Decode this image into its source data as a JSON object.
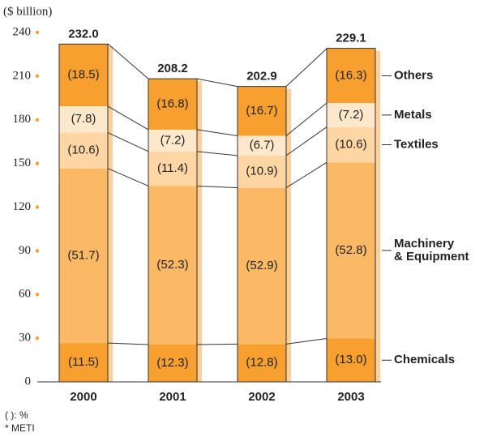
{
  "chart_data": {
    "type": "stacked-bar",
    "y_label": "($ billion)",
    "categories": [
      "2000",
      "2001",
      "2002",
      "2003"
    ],
    "totals": {
      "values": [
        232.0,
        208.2,
        202.9,
        229.1
      ],
      "value_labels": [
        "232.0",
        "208.2",
        "202.9",
        "229.1"
      ]
    },
    "series": [
      {
        "name": "Chemicals",
        "color": "#f7a030",
        "values": [
          11.5,
          12.3,
          12.8,
          13.0
        ],
        "value_labels": [
          "(11.5)",
          "(12.3)",
          "(12.8)",
          "(13.0)"
        ]
      },
      {
        "name": "Machinery & Equipment",
        "color": "#fbb966",
        "values": [
          51.7,
          52.3,
          52.9,
          52.8
        ],
        "value_labels": [
          "(51.7)",
          "(52.3)",
          "(52.9)",
          "(52.8)"
        ]
      },
      {
        "name": "Textiles",
        "color": "#fdd6a4",
        "values": [
          10.6,
          11.4,
          10.9,
          10.6
        ],
        "value_labels": [
          "(10.6)",
          "(11.4)",
          "(10.9)",
          "(10.6)"
        ]
      },
      {
        "name": "Metals",
        "color": "#fee8cb",
        "values": [
          7.8,
          7.2,
          6.7,
          7.2
        ],
        "value_labels": [
          "(7.8)",
          "(7.2)",
          "(6.7)",
          "(7.2)"
        ]
      },
      {
        "name": "Others",
        "color": "#f7a030",
        "values": [
          18.5,
          16.8,
          16.7,
          16.3
        ],
        "value_labels": [
          "(18.5)",
          "(16.8)",
          "(16.7)",
          "(16.3)"
        ]
      }
    ],
    "ylim": [
      0,
      240
    ],
    "yticks": [
      0,
      30,
      60,
      90,
      120,
      150,
      180,
      210,
      240
    ],
    "notes": [
      "( ): %",
      "* METI"
    ]
  }
}
